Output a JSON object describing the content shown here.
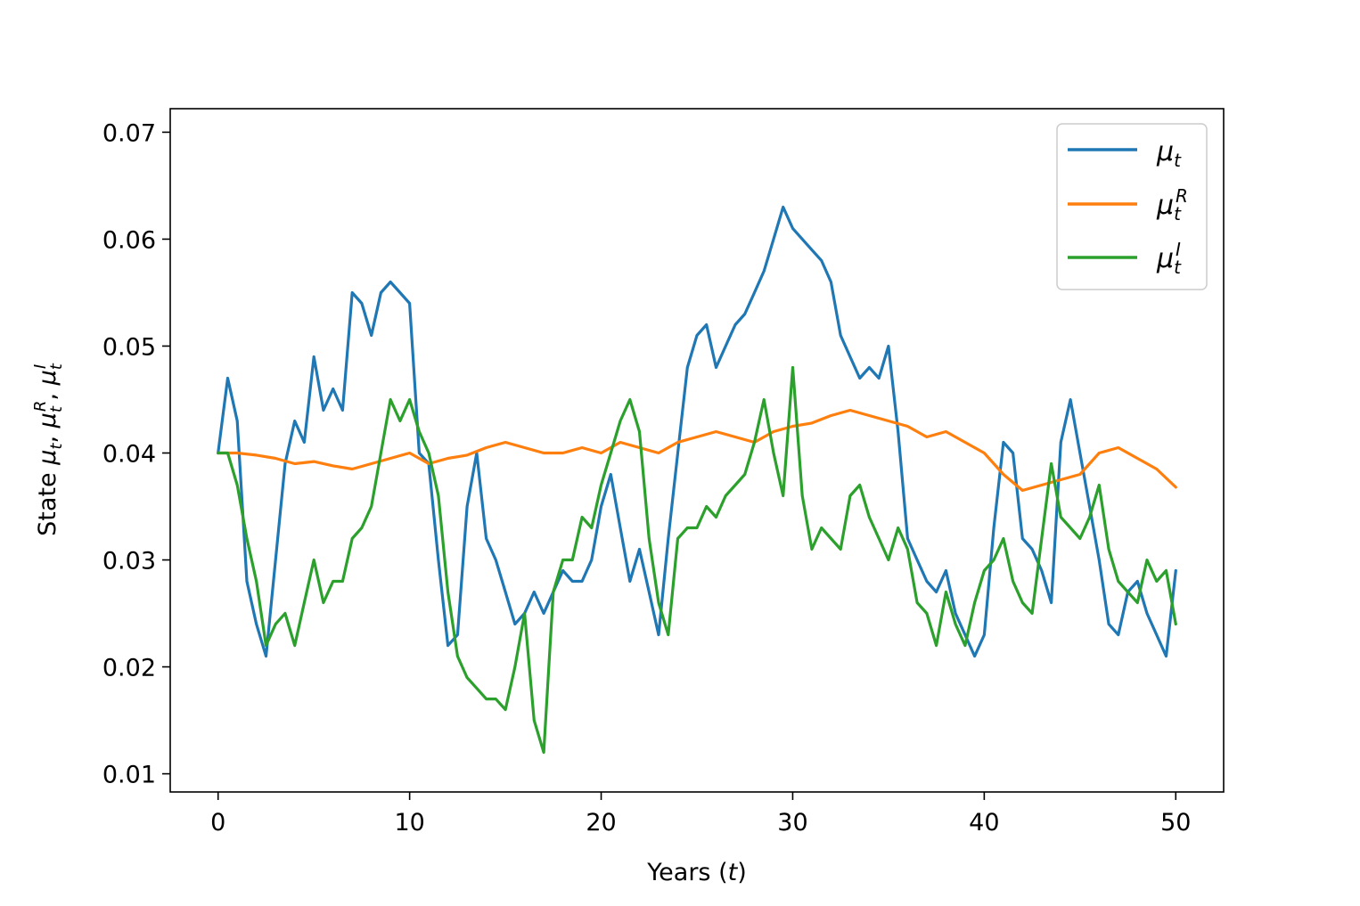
{
  "chart_data": {
    "type": "line",
    "title": "",
    "xlabel": "Years (t)",
    "ylabel": "State μt, μtR, μtI",
    "xlim": [
      -2.5,
      52.5
    ],
    "ylim": [
      0.0083,
      0.0722
    ],
    "xticks": [
      0,
      10,
      20,
      30,
      40,
      50
    ],
    "yticks": [
      0.01,
      0.02,
      0.03,
      0.04,
      0.05,
      0.06,
      0.07
    ],
    "xtick_labels": [
      "0",
      "10",
      "20",
      "30",
      "40",
      "50"
    ],
    "ytick_labels": [
      "0.01",
      "0.02",
      "0.03",
      "0.04",
      "0.05",
      "0.06",
      "0.07"
    ],
    "grid": false,
    "legend_position": "top-right",
    "series": [
      {
        "name": "μt",
        "color": "#1f77b4",
        "x": [
          0,
          0.5,
          1,
          1.5,
          2,
          2.5,
          3,
          3.5,
          4,
          4.5,
          5,
          5.5,
          6,
          6.5,
          7,
          7.5,
          8,
          8.5,
          9,
          9.5,
          10,
          10.5,
          11,
          11.5,
          12,
          12.5,
          13,
          13.5,
          14,
          14.5,
          15,
          15.5,
          16,
          16.5,
          17,
          17.5,
          18,
          18.5,
          19,
          19.5,
          20,
          20.5,
          21,
          21.5,
          22,
          22.5,
          23,
          23.5,
          24,
          24.5,
          25,
          25.5,
          26,
          26.5,
          27,
          27.5,
          28,
          28.5,
          29,
          29.5,
          30,
          30.5,
          31,
          31.5,
          32,
          32.5,
          33,
          33.5,
          34,
          34.5,
          35,
          35.5,
          36,
          36.5,
          37,
          37.5,
          38,
          38.5,
          39,
          39.5,
          40,
          40.5,
          41,
          41.5,
          42,
          42.5,
          43,
          43.5,
          44,
          44.5,
          45,
          45.5,
          46,
          46.5,
          47,
          47.5,
          48,
          48.5,
          49,
          49.5,
          50
        ],
        "y": [
          0.04,
          0.047,
          0.043,
          0.028,
          0.024,
          0.021,
          0.03,
          0.039,
          0.043,
          0.041,
          0.049,
          0.044,
          0.046,
          0.044,
          0.055,
          0.054,
          0.051,
          0.055,
          0.056,
          0.055,
          0.054,
          0.04,
          0.039,
          0.03,
          0.022,
          0.023,
          0.035,
          0.04,
          0.032,
          0.03,
          0.027,
          0.024,
          0.025,
          0.027,
          0.025,
          0.027,
          0.029,
          0.028,
          0.028,
          0.03,
          0.035,
          0.038,
          0.033,
          0.028,
          0.031,
          0.027,
          0.023,
          0.032,
          0.04,
          0.048,
          0.051,
          0.052,
          0.048,
          0.05,
          0.052,
          0.053,
          0.055,
          0.057,
          0.06,
          0.063,
          0.061,
          0.06,
          0.059,
          0.058,
          0.056,
          0.051,
          0.049,
          0.047,
          0.048,
          0.047,
          0.05,
          0.042,
          0.032,
          0.03,
          0.028,
          0.027,
          0.029,
          0.025,
          0.023,
          0.021,
          0.023,
          0.033,
          0.041,
          0.04,
          0.032,
          0.031,
          0.029,
          0.026,
          0.041,
          0.045,
          0.04,
          0.035,
          0.03,
          0.024,
          0.023,
          0.027,
          0.028,
          0.025,
          0.023,
          0.021,
          0.029
        ]
      },
      {
        "name": "μtR",
        "color": "#ff7f0e",
        "x": [
          0,
          1,
          2,
          3,
          4,
          5,
          6,
          7,
          8,
          9,
          10,
          11,
          12,
          13,
          14,
          15,
          16,
          17,
          18,
          19,
          20,
          21,
          22,
          23,
          24,
          25,
          26,
          27,
          28,
          29,
          30,
          31,
          32,
          33,
          34,
          35,
          36,
          37,
          38,
          39,
          40,
          41,
          42,
          43,
          44,
          45,
          46,
          47,
          48,
          49,
          50
        ],
        "y": [
          0.04,
          0.04,
          0.0398,
          0.0395,
          0.039,
          0.0392,
          0.0388,
          0.0385,
          0.039,
          0.0395,
          0.04,
          0.039,
          0.0395,
          0.0398,
          0.0405,
          0.041,
          0.0405,
          0.04,
          0.04,
          0.0405,
          0.04,
          0.041,
          0.0405,
          0.04,
          0.041,
          0.0415,
          0.042,
          0.0415,
          0.041,
          0.042,
          0.0425,
          0.0428,
          0.0435,
          0.044,
          0.0435,
          0.043,
          0.0425,
          0.0415,
          0.042,
          0.041,
          0.04,
          0.038,
          0.0365,
          0.037,
          0.0375,
          0.038,
          0.04,
          0.0405,
          0.0395,
          0.0385,
          0.0368
        ]
      },
      {
        "name": "μtI",
        "color": "#2ca02c",
        "x": [
          0,
          0.5,
          1,
          1.5,
          2,
          2.5,
          3,
          3.5,
          4,
          4.5,
          5,
          5.5,
          6,
          6.5,
          7,
          7.5,
          8,
          8.5,
          9,
          9.5,
          10,
          10.5,
          11,
          11.5,
          12,
          12.5,
          13,
          13.5,
          14,
          14.5,
          15,
          15.5,
          16,
          16.5,
          17,
          17.5,
          18,
          18.5,
          19,
          19.5,
          20,
          20.5,
          21,
          21.5,
          22,
          22.5,
          23,
          23.5,
          24,
          24.5,
          25,
          25.5,
          26,
          26.5,
          27,
          27.5,
          28,
          28.5,
          29,
          29.5,
          30,
          30.5,
          31,
          31.5,
          32,
          32.5,
          33,
          33.5,
          34,
          34.5,
          35,
          35.5,
          36,
          36.5,
          37,
          37.5,
          38,
          38.5,
          39,
          39.5,
          40,
          40.5,
          41,
          41.5,
          42,
          42.5,
          43,
          43.5,
          44,
          44.5,
          45,
          45.5,
          46,
          46.5,
          47,
          47.5,
          48,
          48.5,
          49,
          49.5,
          50
        ],
        "y": [
          0.04,
          0.04,
          0.037,
          0.032,
          0.028,
          0.022,
          0.024,
          0.025,
          0.022,
          0.026,
          0.03,
          0.026,
          0.028,
          0.028,
          0.032,
          0.033,
          0.035,
          0.04,
          0.045,
          0.043,
          0.045,
          0.042,
          0.04,
          0.036,
          0.027,
          0.021,
          0.019,
          0.018,
          0.017,
          0.017,
          0.016,
          0.02,
          0.025,
          0.015,
          0.012,
          0.027,
          0.03,
          0.03,
          0.034,
          0.033,
          0.037,
          0.04,
          0.043,
          0.045,
          0.042,
          0.032,
          0.026,
          0.023,
          0.032,
          0.033,
          0.033,
          0.035,
          0.034,
          0.036,
          0.037,
          0.038,
          0.041,
          0.045,
          0.04,
          0.036,
          0.048,
          0.036,
          0.031,
          0.033,
          0.032,
          0.031,
          0.036,
          0.037,
          0.034,
          0.032,
          0.03,
          0.033,
          0.031,
          0.026,
          0.025,
          0.022,
          0.027,
          0.024,
          0.022,
          0.026,
          0.029,
          0.03,
          0.032,
          0.028,
          0.026,
          0.025,
          0.032,
          0.039,
          0.034,
          0.033,
          0.032,
          0.034,
          0.037,
          0.031,
          0.028,
          0.027,
          0.026,
          0.03,
          0.028,
          0.029,
          0.024
        ]
      }
    ]
  }
}
